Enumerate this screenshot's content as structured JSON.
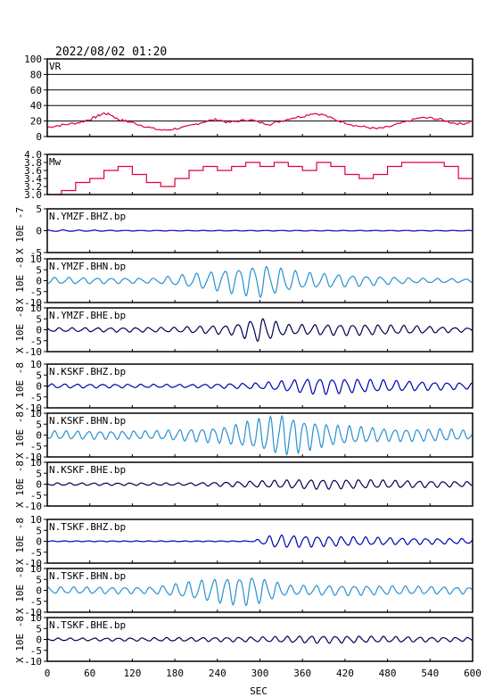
{
  "header": {
    "datetime": "2022/08/02 01:20"
  },
  "chart_data": {
    "type": "line",
    "x_axis": {
      "label": "SEC",
      "range": [
        0,
        600
      ],
      "ticks": [
        0,
        60,
        120,
        180,
        240,
        300,
        360,
        420,
        480,
        540,
        600
      ]
    },
    "panels": [
      {
        "name": "VR",
        "type": "line",
        "ylim": [
          0,
          100
        ],
        "yticks": [
          0,
          20,
          40,
          60,
          80,
          100
        ],
        "grid": true,
        "color": "#e0003c",
        "series": [
          {
            "x": [
              0,
              15,
              30,
              45,
              60,
              70,
              80,
              90,
              100,
              110,
              120,
              135,
              150,
              165,
              180,
              195,
              210,
              225,
              240,
              255,
              270,
              285,
              300,
              315,
              330,
              345,
              360,
              375,
              390,
              405,
              420,
              435,
              450,
              465,
              480,
              495,
              510,
              525,
              540,
              555,
              570,
              585,
              600
            ],
            "y": [
              12,
              14,
              16,
              18,
              22,
              26,
              30,
              28,
              22,
              20,
              18,
              14,
              10,
              8,
              10,
              12,
              16,
              20,
              22,
              18,
              20,
              22,
              18,
              16,
              20,
              24,
              26,
              30,
              28,
              22,
              18,
              14,
              12,
              10,
              12,
              16,
              20,
              24,
              24,
              22,
              18,
              16,
              20
            ]
          }
        ]
      },
      {
        "name": "Mw",
        "type": "step",
        "ylim": [
          3.0,
          4.0
        ],
        "yticks": [
          3.0,
          3.2,
          3.4,
          3.6,
          3.8,
          4.0
        ],
        "ytick_labels": [
          "3.0",
          "3.2",
          "3.4",
          "3.6",
          "3.8",
          "4.0"
        ],
        "grid": false,
        "color": "#e0003c",
        "series": [
          {
            "x": [
              0,
              20,
              40,
              60,
              80,
              100,
              120,
              140,
              160,
              180,
              200,
              220,
              240,
              260,
              280,
              300,
              320,
              340,
              360,
              380,
              400,
              420,
              440,
              460,
              480,
              500,
              520,
              540,
              560,
              580,
              600
            ],
            "y": [
              3.0,
              3.1,
              3.3,
              3.4,
              3.6,
              3.7,
              3.5,
              3.3,
              3.2,
              3.4,
              3.6,
              3.7,
              3.6,
              3.7,
              3.8,
              3.7,
              3.8,
              3.7,
              3.6,
              3.8,
              3.7,
              3.5,
              3.4,
              3.5,
              3.7,
              3.8,
              3.8,
              3.8,
              3.7,
              3.4,
              3.4
            ]
          }
        ]
      },
      {
        "name": "N.YMZF.BHZ.bp",
        "ylabel": "X 10E -7",
        "ylim": [
          -5,
          5
        ],
        "yticks": [
          -5,
          0,
          5
        ],
        "color": "#0000b4",
        "amp": 0.4,
        "env": [
          [
            0,
            0.5
          ],
          [
            120,
            0.2
          ],
          [
            600,
            0.2
          ]
        ],
        "period": 22
      },
      {
        "name": "N.YMZF.BHN.bp",
        "ylabel": "X 10E -8",
        "ylim": [
          -10,
          10
        ],
        "yticks": [
          -10,
          -5,
          0,
          5,
          10
        ],
        "color": "#2890d0",
        "amp": 8,
        "env": [
          [
            0,
            0.2
          ],
          [
            150,
            0.15
          ],
          [
            220,
            0.5
          ],
          [
            300,
            1.0
          ],
          [
            360,
            0.5
          ],
          [
            450,
            0.3
          ],
          [
            520,
            0.15
          ],
          [
            600,
            0.1
          ]
        ],
        "period": 20
      },
      {
        "name": "N.YMZF.BHE.bp",
        "ylabel": "X 10E -8",
        "ylim": [
          -10,
          10
        ],
        "yticks": [
          -10,
          -5,
          0,
          5,
          10
        ],
        "color": "#000050",
        "amp": 6,
        "env": [
          [
            0,
            0.15
          ],
          [
            180,
            0.2
          ],
          [
            260,
            0.4
          ],
          [
            300,
            1.0
          ],
          [
            340,
            0.4
          ],
          [
            430,
            0.45
          ],
          [
            500,
            0.35
          ],
          [
            600,
            0.15
          ]
        ],
        "period": 18
      },
      {
        "name": "N.KSKF.BHZ.bp",
        "ylabel": "X 10E -8",
        "ylim": [
          -10,
          10
        ],
        "yticks": [
          -10,
          -5,
          0,
          5,
          10
        ],
        "color": "#0000b4",
        "amp": 5,
        "env": [
          [
            0,
            0.2
          ],
          [
            200,
            0.15
          ],
          [
            300,
            0.3
          ],
          [
            380,
            0.8
          ],
          [
            460,
            0.6
          ],
          [
            540,
            0.4
          ],
          [
            600,
            0.3
          ]
        ],
        "period": 18
      },
      {
        "name": "N.KSKF.BHN.bp",
        "ylabel": "X 10E -8",
        "ylim": [
          -10,
          10
        ],
        "yticks": [
          -10,
          -5,
          0,
          5,
          10
        ],
        "color": "#2890d0",
        "amp": 10,
        "env": [
          [
            0,
            0.2
          ],
          [
            150,
            0.2
          ],
          [
            250,
            0.4
          ],
          [
            330,
            1.0
          ],
          [
            400,
            0.5
          ],
          [
            480,
            0.3
          ],
          [
            560,
            0.3
          ],
          [
            600,
            0.2
          ]
        ],
        "period": 16
      },
      {
        "name": "N.KSKF.BHE.bp",
        "ylabel": "X 10E -8",
        "ylim": [
          -10,
          10
        ],
        "yticks": [
          -10,
          -5,
          0,
          5,
          10
        ],
        "color": "#000050",
        "amp": 4,
        "env": [
          [
            0,
            0.15
          ],
          [
            200,
            0.15
          ],
          [
            300,
            0.4
          ],
          [
            380,
            0.6
          ],
          [
            460,
            0.5
          ],
          [
            600,
            0.3
          ]
        ],
        "period": 17
      },
      {
        "name": "N.TSKF.BHZ.bp",
        "ylabel": "X 10E -8",
        "ylim": [
          -10,
          10
        ],
        "yticks": [
          -10,
          -5,
          0,
          5,
          10
        ],
        "color": "#0000b4",
        "amp": 4,
        "env": [
          [
            0,
            0.05
          ],
          [
            290,
            0.05
          ],
          [
            320,
            0.8
          ],
          [
            400,
            0.6
          ],
          [
            500,
            0.4
          ],
          [
            600,
            0.3
          ]
        ],
        "period": 17
      },
      {
        "name": "N.TSKF.BHN.bp",
        "ylabel": "X 10E -8",
        "ylim": [
          -10,
          10
        ],
        "yticks": [
          -10,
          -5,
          0,
          5,
          10
        ],
        "color": "#2890d0",
        "amp": 8,
        "env": [
          [
            0,
            0.2
          ],
          [
            150,
            0.2
          ],
          [
            250,
            0.8
          ],
          [
            290,
            0.9
          ],
          [
            340,
            0.3
          ],
          [
            420,
            0.3
          ],
          [
            600,
            0.2
          ]
        ],
        "period": 18
      },
      {
        "name": "N.TSKF.BHE.bp",
        "ylabel": "X 10E -8",
        "ylim": [
          -10,
          10
        ],
        "yticks": [
          -10,
          -5,
          0,
          5,
          10
        ],
        "color": "#000050",
        "amp": 3,
        "env": [
          [
            0,
            0.2
          ],
          [
            200,
            0.3
          ],
          [
            300,
            0.4
          ],
          [
            380,
            0.6
          ],
          [
            460,
            0.5
          ],
          [
            600,
            0.3
          ]
        ],
        "period": 17
      }
    ]
  }
}
